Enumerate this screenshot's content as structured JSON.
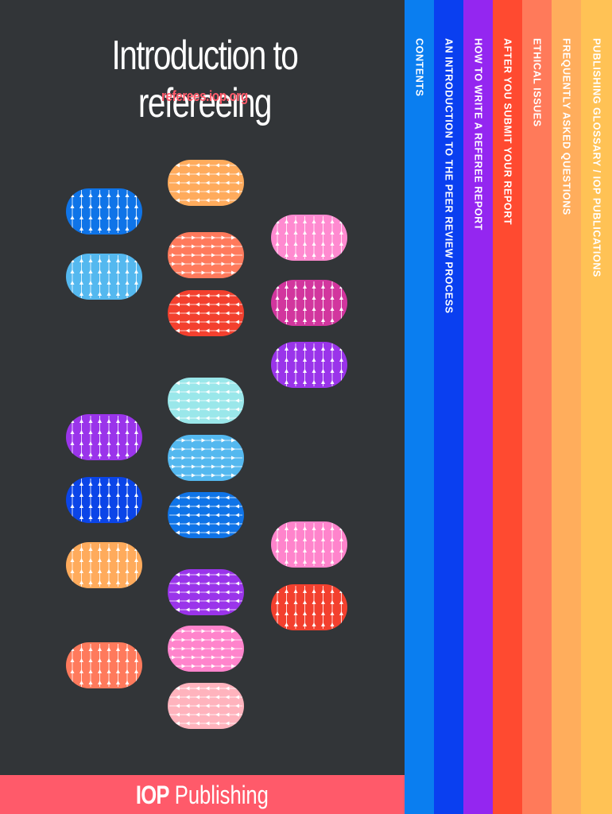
{
  "cover": {
    "title": "Introduction to refereeing",
    "url": "referees.iop.org",
    "background": "#323538"
  },
  "footer": {
    "brand_bold": "IOP",
    "brand_rest": " Publishing",
    "color": "#ff5a6a"
  },
  "tabs": [
    {
      "label": "CONTENTS",
      "color": "#0a7ef0"
    },
    {
      "label": "AN INTRODUCTION TO THE PEER REVIEW PROCESS",
      "color": "#0a3ff0"
    },
    {
      "label": "HOW TO WRITE A REFEREE REPORT",
      "color": "#9426f0"
    },
    {
      "label": "AFTER YOU SUBMIT YOUR REPORT",
      "color": "#ff4a30"
    },
    {
      "label": "ETHICAL ISSUES",
      "color": "#ff7a5a"
    },
    {
      "label": "FREQUENTLY ASKED QUESTIONS",
      "color": "#ffad5c"
    },
    {
      "label": "PUBLISHING GLOSSARY  /  IOP PUBLICATIONS",
      "color": "#ffc255"
    }
  ],
  "decor_pills": [
    {
      "color": "#0f74e8",
      "arrows": "up"
    },
    {
      "color": "#54b8ef",
      "arrows": "up"
    },
    {
      "color": "#9a34ea",
      "arrows": "up"
    },
    {
      "color": "#0b45e8",
      "arrows": "up"
    },
    {
      "color": "#ffab5c",
      "arrows": "up"
    },
    {
      "color": "#ff7a5c",
      "arrows": "up"
    },
    {
      "color": "#ffab5c",
      "arrows": "left"
    },
    {
      "color": "#ff7a5c",
      "arrows": "right"
    },
    {
      "color": "#f3402e",
      "arrows": "left"
    },
    {
      "color": "#9ae7ea",
      "arrows": "left"
    },
    {
      "color": "#54b8ef",
      "arrows": "right"
    },
    {
      "color": "#0f74e8",
      "arrows": "left"
    },
    {
      "color": "#9a34ea",
      "arrows": "left"
    },
    {
      "color": "#ff84cc",
      "arrows": "right"
    },
    {
      "color": "#ffb3bd",
      "arrows": "left"
    },
    {
      "color": "#ff8ad0",
      "arrows": "up"
    },
    {
      "color": "#d2369e",
      "arrows": "up"
    },
    {
      "color": "#9a34ea",
      "arrows": "up"
    },
    {
      "color": "#ff84cc",
      "arrows": "up"
    },
    {
      "color": "#f3402e",
      "arrows": "up"
    }
  ]
}
